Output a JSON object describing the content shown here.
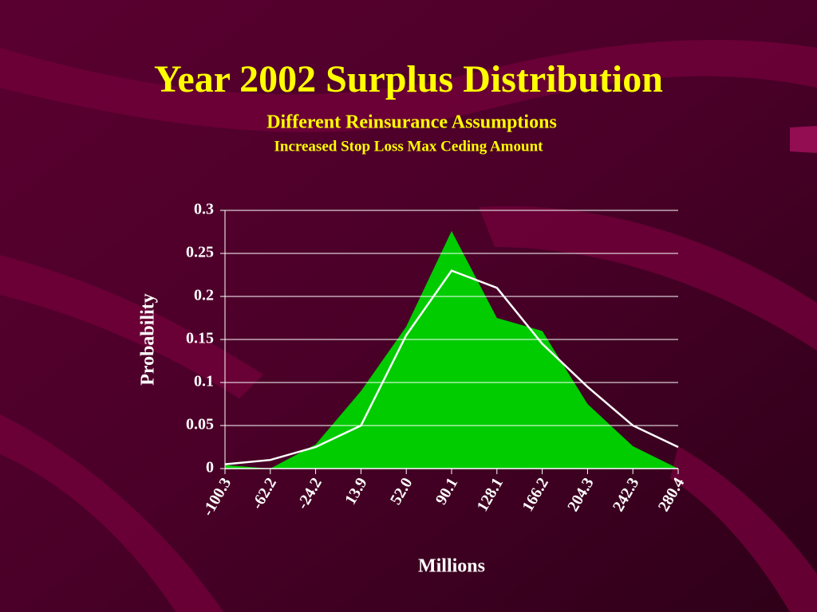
{
  "chart_data": {
    "type": "area",
    "title": "Year 2002 Surplus Distribution",
    "subtitle": "Different Reinsurance Assumptions",
    "subsubtitle": "Increased Stop Loss Max Ceding Amount",
    "x_label": "Millions",
    "y_label": "Probability",
    "categories": [
      "-100.3",
      "-62.2",
      "-24.2",
      "13.9",
      "52.0",
      "90.1",
      "128.1",
      "166.2",
      "204.3",
      "242.3",
      "280.4"
    ],
    "series": [
      {
        "type": "area",
        "color": "#00cc00",
        "values": [
          0.004,
          0,
          0.028,
          0.09,
          0.165,
          0.276,
          0.175,
          0.16,
          0.075,
          0.026,
          0
        ]
      },
      {
        "type": "line",
        "color": "#ffffff",
        "values": [
          0.005,
          0.01,
          0.025,
          0.05,
          0.155,
          0.23,
          0.21,
          0.145,
          0.095,
          0.05,
          0.025
        ]
      }
    ],
    "ylim": [
      0,
      0.3
    ],
    "yticks": [
      0,
      0.05,
      0.1,
      0.15,
      0.2,
      0.25,
      0.3
    ],
    "grid": true
  }
}
